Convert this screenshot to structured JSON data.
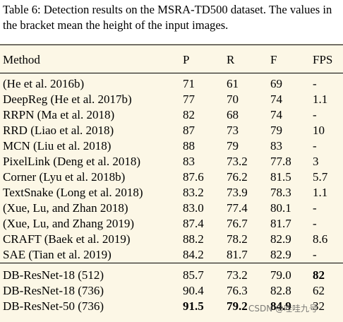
{
  "caption": "Table 6: Detection results on the MSRA-TD500 dataset. The values in the bracket mean the height of the input images.",
  "headers": {
    "method": "Method",
    "p": "P",
    "r": "R",
    "f": "F",
    "fps": "FPS"
  },
  "rows": [
    {
      "method": "(He et al. 2016b)",
      "p": "71",
      "r": "61",
      "f": "69",
      "fps": "-"
    },
    {
      "method": "DeepReg (He et al. 2017b)",
      "p": "77",
      "r": "70",
      "f": "74",
      "fps": "1.1"
    },
    {
      "method": "RRPN (Ma et al. 2018)",
      "p": "82",
      "r": "68",
      "f": "74",
      "fps": "-"
    },
    {
      "method": "RRD (Liao et al. 2018)",
      "p": "87",
      "r": "73",
      "f": "79",
      "fps": "10"
    },
    {
      "method": "MCN (Liu et al. 2018)",
      "p": "88",
      "r": "79",
      "f": "83",
      "fps": "-"
    },
    {
      "method": "PixelLink (Deng et al. 2018)",
      "p": "83",
      "r": "73.2",
      "f": "77.8",
      "fps": "3"
    },
    {
      "method": "Corner (Lyu et al. 2018b)",
      "p": "87.6",
      "r": "76.2",
      "f": "81.5",
      "fps": "5.7"
    },
    {
      "method": "TextSnake (Long et al. 2018)",
      "p": "83.2",
      "r": "73.9",
      "f": "78.3",
      "fps": "1.1"
    },
    {
      "method": "(Xue, Lu, and Zhan 2018)",
      "p": "83.0",
      "r": "77.4",
      "f": "80.1",
      "fps": "-"
    },
    {
      "method": "(Xue, Lu, and Zhang 2019)",
      "p": "87.4",
      "r": "76.7",
      "f": "81.7",
      "fps": "-"
    },
    {
      "method": "CRAFT (Baek et al. 2019)",
      "p": "88.2",
      "r": "78.2",
      "f": "82.9",
      "fps": "8.6"
    },
    {
      "method": "SAE (Tian et al. 2019)",
      "p": "84.2",
      "r": "81.7",
      "f": "82.9",
      "fps": "-"
    }
  ],
  "ours_rows": [
    {
      "method": "DB-ResNet-18 (512)",
      "p": "85.7",
      "r": "73.2",
      "f": "79.0",
      "fps": "82"
    },
    {
      "method": "DB-ResNet-18 (736)",
      "p": "90.4",
      "r": "76.3",
      "f": "82.8",
      "fps": "62"
    },
    {
      "method": "DB-ResNet-50 (736)",
      "p": "91.5",
      "r": "79.2",
      "f": "84.9",
      "fps": "32"
    }
  ],
  "watermark": "CSDN @哇哇九号"
}
